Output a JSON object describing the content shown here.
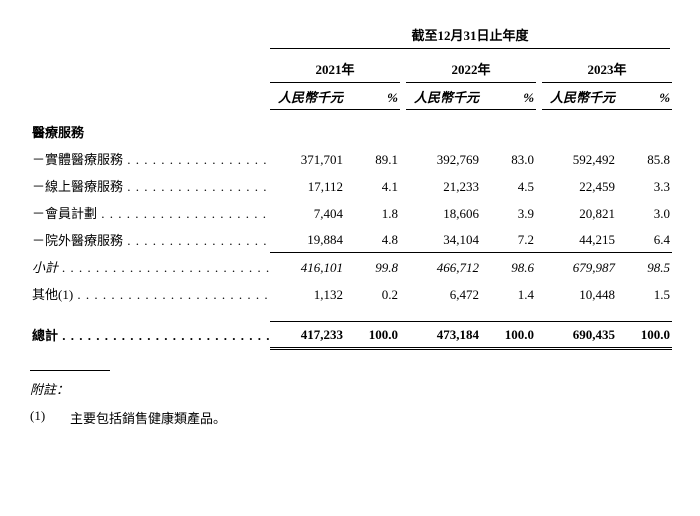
{
  "header": {
    "spanner": "截至12月31日止年度",
    "years": [
      "2021年",
      "2022年",
      "2023年"
    ],
    "unit_label": "人民幣千元",
    "pct_label": "%"
  },
  "section_title": "醫療服務",
  "rows": [
    {
      "label": "－實體醫療服務",
      "v": [
        "371,701",
        "89.1",
        "392,769",
        "83.0",
        "592,492",
        "85.8"
      ]
    },
    {
      "label": "－線上醫療服務",
      "v": [
        "17,112",
        "4.1",
        "21,233",
        "4.5",
        "22,459",
        "3.3"
      ]
    },
    {
      "label": "－會員計劃",
      "v": [
        "7,404",
        "1.8",
        "18,606",
        "3.9",
        "20,821",
        "3.0"
      ]
    },
    {
      "label": "－院外醫療服務",
      "v": [
        "19,884",
        "4.8",
        "34,104",
        "7.2",
        "44,215",
        "6.4"
      ]
    }
  ],
  "subtotal": {
    "label": "小計",
    "v": [
      "416,101",
      "99.8",
      "466,712",
      "98.6",
      "679,987",
      "98.5"
    ]
  },
  "other": {
    "label": "其他(1)",
    "v": [
      "1,132",
      "0.2",
      "6,472",
      "1.4",
      "10,448",
      "1.5"
    ]
  },
  "total": {
    "label": "總計",
    "v": [
      "417,233",
      "100.0",
      "473,184",
      "100.0",
      "690,435",
      "100.0"
    ]
  },
  "notes": {
    "title": "附註：",
    "items": [
      {
        "num": "(1)",
        "text": "主要包括銷售健康類產品。"
      }
    ]
  }
}
